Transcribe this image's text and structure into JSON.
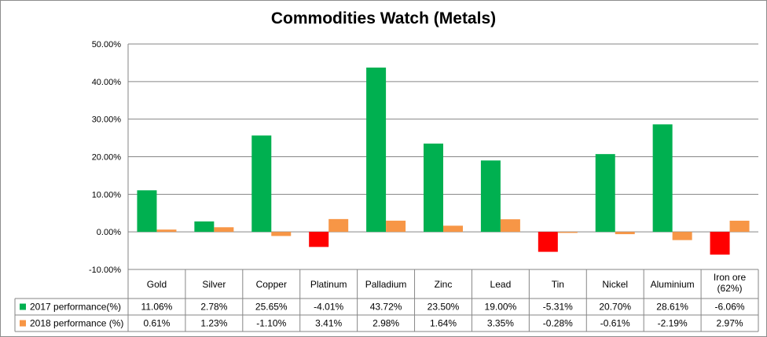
{
  "chart_data": {
    "type": "bar",
    "title": "Commodities Watch (Metals)",
    "categories": [
      [
        "Gold"
      ],
      [
        "Silver"
      ],
      [
        "Copper"
      ],
      [
        "Platinum"
      ],
      [
        "Palladium"
      ],
      [
        "Zinc"
      ],
      [
        "Lead"
      ],
      [
        "Tin"
      ],
      [
        "Nickel"
      ],
      [
        "Aluminium"
      ],
      [
        "Iron ore",
        "(62%)"
      ]
    ],
    "series": [
      {
        "name": "2017 performance(%)",
        "color": "#00b050",
        "negative_color": "#ff0000",
        "values": [
          11.06,
          2.78,
          25.65,
          -4.01,
          43.72,
          23.5,
          19.0,
          -5.31,
          20.7,
          28.61,
          -6.06
        ],
        "labels": [
          "11.06%",
          "2.78%",
          "25.65%",
          "-4.01%",
          "43.72%",
          "23.50%",
          "19.00%",
          "-5.31%",
          "20.70%",
          "28.61%",
          "-6.06%"
        ]
      },
      {
        "name": "2018 performance (%)",
        "color": "#f79646",
        "values": [
          0.61,
          1.23,
          -1.1,
          3.41,
          2.98,
          1.64,
          3.35,
          -0.28,
          -0.61,
          -2.19,
          2.97
        ],
        "labels": [
          "0.61%",
          "1.23%",
          "-1.10%",
          "3.41%",
          "2.98%",
          "1.64%",
          "3.35%",
          "-0.28%",
          "-0.61%",
          "-2.19%",
          "2.97%"
        ]
      }
    ],
    "ylim": [
      -10,
      50
    ],
    "yticks": [
      -10,
      0,
      10,
      20,
      30,
      40,
      50
    ],
    "ytick_labels": [
      "-10.00%",
      "0.00%",
      "10.00%",
      "20.00%",
      "30.00%",
      "40.00%",
      "50.00%"
    ],
    "grid": true,
    "legend": "data-table"
  }
}
